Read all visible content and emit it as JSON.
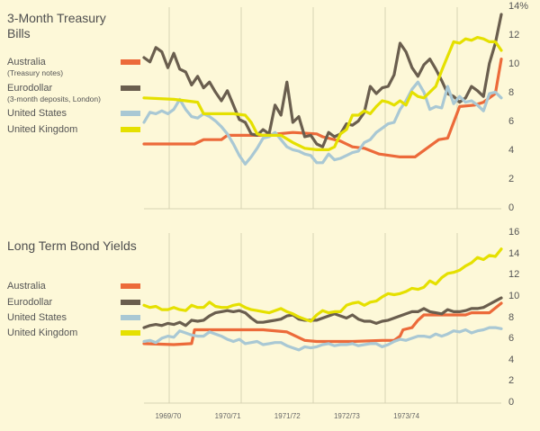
{
  "colors": {
    "background": "#fdf8d8",
    "grid": "#d8d3b4",
    "Australia": "#ec6a3a",
    "Eurodollar": "#6a5e4e",
    "United States": "#a9c8d4",
    "United Kingdom": "#e5e000"
  },
  "chart_data": [
    {
      "type": "line",
      "title": "3-Month Treasury Bills",
      "ylim": [
        0,
        14
      ],
      "yticks": [
        "14%",
        "12",
        "10",
        "8",
        "6",
        "4",
        "2",
        "0"
      ],
      "ytick_values": [
        14,
        12,
        10,
        8,
        6,
        4,
        2,
        0
      ],
      "grid": true,
      "legend_position": "top-left",
      "xlim": [
        0,
        6
      ],
      "series": [
        {
          "name": "Australia",
          "subtitle": "(Treasury notes)",
          "x": [
            0,
            0.5,
            0.85,
            1.0,
            1.3,
            1.4,
            2.0,
            2.5,
            2.9,
            3.0,
            3.3,
            3.5,
            3.7,
            3.95,
            4.3,
            4.55,
            4.65,
            4.95,
            5.1,
            5.3,
            5.55,
            5.7,
            5.9,
            6.0
          ],
          "values": [
            4.5,
            4.5,
            4.5,
            4.8,
            4.8,
            5.1,
            5.1,
            5.3,
            5.2,
            5.0,
            4.7,
            4.3,
            4.2,
            3.8,
            3.6,
            3.6,
            3.9,
            4.8,
            4.9,
            7.1,
            7.2,
            7.4,
            8.0,
            10.4
          ]
        },
        {
          "name": "Eurodollar",
          "subtitle": "(3-month deposits, London)",
          "x": [
            0,
            0.1,
            0.2,
            0.3,
            0.4,
            0.5,
            0.6,
            0.7,
            0.8,
            0.9,
            1.0,
            1.1,
            1.2,
            1.3,
            1.4,
            1.5,
            1.6,
            1.7,
            1.8,
            1.9,
            2.0,
            2.1,
            2.2,
            2.3,
            2.4,
            2.5,
            2.6,
            2.7,
            2.8,
            2.9,
            3.0,
            3.1,
            3.2,
            3.3,
            3.4,
            3.5,
            3.6,
            3.7,
            3.8,
            3.9,
            4.0,
            4.1,
            4.2,
            4.3,
            4.4,
            4.5,
            4.6,
            4.7,
            4.8,
            4.9,
            5.0,
            5.1,
            5.2,
            5.3,
            5.4,
            5.5,
            5.6,
            5.7,
            5.8,
            5.9,
            6.0
          ],
          "values": [
            10.5,
            10.2,
            11.2,
            10.9,
            9.8,
            10.8,
            9.7,
            9.5,
            8.6,
            9.2,
            8.4,
            8.8,
            8.1,
            7.5,
            8.2,
            7.2,
            6.2,
            6.0,
            5.2,
            5.1,
            5.5,
            5.2,
            7.2,
            6.5,
            8.8,
            6.0,
            6.4,
            5.0,
            5.1,
            4.5,
            4.3,
            5.3,
            5.0,
            5.2,
            5.9,
            5.8,
            6.1,
            6.7,
            8.5,
            8.0,
            8.4,
            8.5,
            9.3,
            11.5,
            10.9,
            9.8,
            9.2,
            10.0,
            10.4,
            9.7,
            8.9,
            8.0,
            7.8,
            7.4,
            7.7,
            8.5,
            8.2,
            7.8,
            10.1,
            11.5,
            13.5
          ]
        },
        {
          "name": "United States",
          "x": [
            0,
            0.1,
            0.2,
            0.3,
            0.4,
            0.5,
            0.6,
            0.7,
            0.8,
            0.9,
            1.0,
            1.1,
            1.2,
            1.3,
            1.4,
            1.5,
            1.6,
            1.7,
            1.8,
            1.9,
            2.0,
            2.1,
            2.2,
            2.3,
            2.4,
            2.5,
            2.6,
            2.7,
            2.8,
            2.9,
            3.0,
            3.1,
            3.2,
            3.3,
            3.4,
            3.5,
            3.6,
            3.7,
            3.8,
            3.9,
            4.0,
            4.1,
            4.2,
            4.3,
            4.4,
            4.5,
            4.6,
            4.7,
            4.8,
            4.9,
            5.0,
            5.1,
            5.2,
            5.3,
            5.4,
            5.5,
            5.6,
            5.7,
            5.8,
            5.9,
            6.0
          ],
          "values": [
            6.0,
            6.7,
            6.6,
            6.8,
            6.6,
            6.9,
            7.6,
            6.9,
            6.4,
            6.3,
            6.6,
            6.4,
            6.1,
            5.7,
            5.2,
            4.5,
            3.7,
            3.1,
            3.6,
            4.2,
            4.9,
            5.0,
            5.3,
            4.8,
            4.3,
            4.1,
            4.0,
            3.8,
            3.7,
            3.2,
            3.2,
            3.8,
            3.4,
            3.5,
            3.7,
            3.9,
            4.0,
            4.6,
            4.8,
            5.3,
            5.6,
            5.9,
            6.0,
            6.9,
            7.5,
            8.3,
            8.8,
            8.1,
            6.9,
            7.1,
            7.0,
            8.5,
            7.3,
            7.8,
            7.4,
            7.5,
            7.2,
            6.8,
            8.0,
            8.1,
            7.7
          ]
        },
        {
          "name": "United Kingdom",
          "x": [
            0,
            0.5,
            0.9,
            1.0,
            1.5,
            1.7,
            1.8,
            1.9,
            2.0,
            2.3,
            2.5,
            2.7,
            2.9,
            3.0,
            3.1,
            3.2,
            3.3,
            3.4,
            3.5,
            3.6,
            3.7,
            3.8,
            3.9,
            4.0,
            4.1,
            4.2,
            4.3,
            4.4,
            4.5,
            4.6,
            4.7,
            4.8,
            4.9,
            5.0,
            5.1,
            5.2,
            5.3,
            5.4,
            5.5,
            5.6,
            5.7,
            5.8,
            5.9,
            6.0
          ],
          "values": [
            7.7,
            7.6,
            7.4,
            6.6,
            6.6,
            6.5,
            6.0,
            5.2,
            5.1,
            5.1,
            4.6,
            4.2,
            4.1,
            4.1,
            4.1,
            4.3,
            5.2,
            5.5,
            6.5,
            6.5,
            6.8,
            6.6,
            7.1,
            7.5,
            7.4,
            7.2,
            7.5,
            7.2,
            8.1,
            7.8,
            7.7,
            8.1,
            8.5,
            9.6,
            10.6,
            11.6,
            11.5,
            11.8,
            11.7,
            11.9,
            11.8,
            11.6,
            11.6,
            11.0
          ]
        }
      ]
    },
    {
      "type": "line",
      "title": "Long Term Bond Yields",
      "ylim": [
        0,
        16
      ],
      "yticks": [
        "16",
        "14",
        "12",
        "10",
        "8",
        "6",
        "4",
        "2",
        "0"
      ],
      "ytick_values": [
        16,
        14,
        12,
        10,
        8,
        6,
        4,
        2,
        0
      ],
      "grid": true,
      "legend_position": "top-left",
      "xlim": [
        0,
        6
      ],
      "xticks": [
        "1969/70",
        "1970/71",
        "1971/72",
        "1972/73",
        "1973/74"
      ],
      "xtick_values": [
        0.4,
        1.4,
        2.4,
        3.4,
        4.4
      ],
      "series": [
        {
          "name": "Australia",
          "x": [
            0,
            0.5,
            0.8,
            0.85,
            1.0,
            1.5,
            2.0,
            2.4,
            2.7,
            2.9,
            3.0,
            3.5,
            4.0,
            4.1,
            4.2,
            4.3,
            4.35,
            4.5,
            4.6,
            4.7,
            5.4,
            5.5,
            5.8,
            6.0
          ],
          "values": [
            5.6,
            5.5,
            5.6,
            6.9,
            6.9,
            6.9,
            6.9,
            6.7,
            5.9,
            5.8,
            5.8,
            5.8,
            5.9,
            5.9,
            5.9,
            6.3,
            6.9,
            7.1,
            7.8,
            8.3,
            8.3,
            8.5,
            8.5,
            9.4
          ]
        },
        {
          "name": "Eurodollar",
          "x": [
            0,
            0.1,
            0.2,
            0.3,
            0.4,
            0.5,
            0.6,
            0.7,
            0.8,
            0.9,
            1.0,
            1.1,
            1.2,
            1.3,
            1.4,
            1.5,
            1.6,
            1.7,
            1.8,
            1.9,
            2.0,
            2.1,
            2.2,
            2.3,
            2.4,
            2.5,
            2.6,
            2.7,
            2.8,
            2.9,
            3.0,
            3.1,
            3.2,
            3.3,
            3.4,
            3.5,
            3.6,
            3.7,
            3.8,
            3.9,
            4.0,
            4.1,
            4.2,
            4.3,
            4.4,
            4.5,
            4.6,
            4.7,
            4.8,
            4.9,
            5.0,
            5.1,
            5.2,
            5.3,
            5.4,
            5.5,
            5.6,
            5.7,
            5.8,
            5.9,
            6.0
          ],
          "values": [
            7.1,
            7.3,
            7.4,
            7.3,
            7.5,
            7.4,
            7.6,
            7.3,
            7.8,
            7.7,
            7.8,
            8.2,
            8.5,
            8.6,
            8.7,
            8.6,
            8.7,
            8.5,
            8.0,
            7.6,
            7.6,
            7.7,
            7.8,
            7.9,
            8.2,
            8.3,
            7.9,
            7.8,
            7.8,
            7.8,
            8.0,
            8.2,
            8.4,
            8.2,
            8.0,
            8.3,
            7.9,
            7.7,
            7.7,
            7.5,
            7.7,
            7.8,
            8.0,
            8.2,
            8.4,
            8.6,
            8.6,
            8.9,
            8.6,
            8.5,
            8.4,
            8.8,
            8.6,
            8.6,
            8.7,
            8.9,
            8.9,
            9.0,
            9.3,
            9.6,
            9.9
          ]
        },
        {
          "name": "United States",
          "x": [
            0,
            0.1,
            0.2,
            0.3,
            0.4,
            0.5,
            0.6,
            0.7,
            0.8,
            0.9,
            1.0,
            1.1,
            1.2,
            1.3,
            1.4,
            1.5,
            1.6,
            1.7,
            1.8,
            1.9,
            2.0,
            2.1,
            2.2,
            2.3,
            2.4,
            2.5,
            2.6,
            2.7,
            2.8,
            2.9,
            3.0,
            3.1,
            3.2,
            3.3,
            3.4,
            3.5,
            3.6,
            3.7,
            3.8,
            3.9,
            4.0,
            4.1,
            4.2,
            4.3,
            4.4,
            4.5,
            4.6,
            4.7,
            4.8,
            4.9,
            5.0,
            5.1,
            5.2,
            5.3,
            5.4,
            5.5,
            5.6,
            5.7,
            5.8,
            5.9,
            6.0
          ],
          "values": [
            5.8,
            5.9,
            5.7,
            6.1,
            6.3,
            6.2,
            6.8,
            6.6,
            6.4,
            6.3,
            6.3,
            6.7,
            6.5,
            6.3,
            6.0,
            5.8,
            6.0,
            5.6,
            5.7,
            5.8,
            5.5,
            5.6,
            5.7,
            5.7,
            5.4,
            5.2,
            5.0,
            5.3,
            5.2,
            5.3,
            5.5,
            5.6,
            5.4,
            5.5,
            5.5,
            5.6,
            5.4,
            5.5,
            5.6,
            5.6,
            5.3,
            5.5,
            5.8,
            6.0,
            5.9,
            6.1,
            6.3,
            6.3,
            6.2,
            6.5,
            6.3,
            6.5,
            6.8,
            6.7,
            6.9,
            6.6,
            6.8,
            6.9,
            7.1,
            7.1,
            7.0
          ]
        },
        {
          "name": "United Kingdom",
          "x": [
            0,
            0.1,
            0.2,
            0.3,
            0.4,
            0.5,
            0.6,
            0.7,
            0.8,
            0.9,
            1.0,
            1.1,
            1.2,
            1.3,
            1.4,
            1.5,
            1.6,
            1.7,
            1.8,
            1.9,
            2.0,
            2.1,
            2.2,
            2.3,
            2.4,
            2.5,
            2.6,
            2.7,
            2.8,
            2.9,
            3.0,
            3.1,
            3.2,
            3.3,
            3.4,
            3.5,
            3.6,
            3.7,
            3.8,
            3.9,
            4.0,
            4.1,
            4.2,
            4.3,
            4.4,
            4.5,
            4.6,
            4.7,
            4.8,
            4.9,
            5.0,
            5.1,
            5.2,
            5.3,
            5.4,
            5.5,
            5.6,
            5.7,
            5.8,
            5.9,
            6.0
          ],
          "values": [
            9.2,
            9.0,
            9.1,
            8.8,
            8.8,
            9.0,
            8.8,
            8.7,
            9.2,
            9.0,
            9.0,
            9.5,
            9.1,
            9.0,
            9.0,
            9.2,
            9.3,
            9.0,
            8.8,
            8.7,
            8.6,
            8.5,
            8.7,
            8.9,
            8.6,
            8.4,
            8.1,
            7.9,
            7.7,
            8.3,
            8.7,
            8.5,
            8.6,
            8.6,
            9.2,
            9.4,
            9.5,
            9.2,
            9.5,
            9.6,
            10.0,
            10.3,
            10.2,
            10.3,
            10.5,
            10.8,
            10.7,
            10.9,
            11.5,
            11.2,
            11.8,
            12.2,
            12.3,
            12.5,
            12.9,
            13.2,
            13.7,
            13.5,
            13.9,
            13.8,
            14.5
          ]
        }
      ]
    }
  ]
}
